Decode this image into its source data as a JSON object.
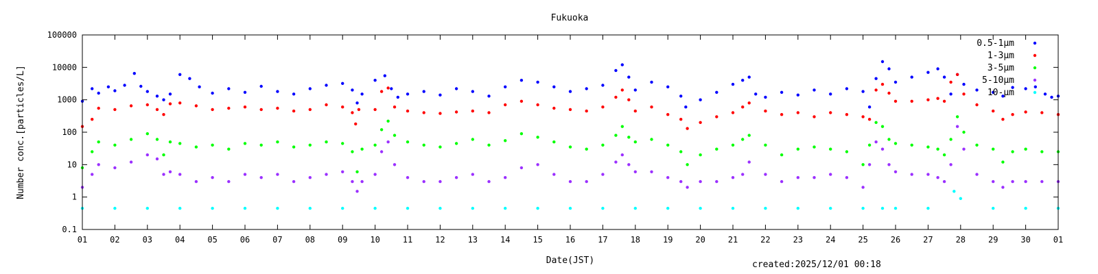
{
  "chart_data": {
    "type": "scatter",
    "title": "Fukuoka",
    "xlabel": "Date(JST)",
    "ylabel": "Number conc.[particles/L]",
    "yscale": "log",
    "ylim": [
      0.1,
      100000
    ],
    "yticks": [
      {
        "value": 0.1,
        "label": "0.1"
      },
      {
        "value": 1,
        "label": "1"
      },
      {
        "value": 10,
        "label": "10"
      },
      {
        "value": 100,
        "label": "100"
      },
      {
        "value": 1000,
        "label": "1000"
      },
      {
        "value": 10000,
        "label": "10000"
      },
      {
        "value": 100000,
        "label": "100000"
      }
    ],
    "xlim": [
      1,
      31
    ],
    "xticks": [
      "01",
      "02",
      "03",
      "04",
      "05",
      "06",
      "07",
      "08",
      "09",
      "10",
      "11",
      "12",
      "13",
      "14",
      "15",
      "16",
      "17",
      "18",
      "19",
      "20",
      "21",
      "22",
      "23",
      "24",
      "25",
      "26",
      "27",
      "28",
      "29",
      "30",
      "01"
    ],
    "grid": false,
    "legend_position": "top-right",
    "footer": "created:2025/12/01 00:18",
    "series": [
      {
        "name": "0.5-1μm",
        "color": "#0000ff",
        "x": [
          1.0,
          1.3,
          1.5,
          1.8,
          2.0,
          2.3,
          2.6,
          2.8,
          3.0,
          3.3,
          3.5,
          3.7,
          4.0,
          4.3,
          4.6,
          5.0,
          5.5,
          6.0,
          6.5,
          7.0,
          7.5,
          8.0,
          8.5,
          9.0,
          9.3,
          9.45,
          9.6,
          10.0,
          10.3,
          10.5,
          10.7,
          11.0,
          11.5,
          12.0,
          12.5,
          13.0,
          13.5,
          14.0,
          14.5,
          15.0,
          15.5,
          16.0,
          16.5,
          17.0,
          17.4,
          17.6,
          17.8,
          18.0,
          18.5,
          19.0,
          19.4,
          19.55,
          20.0,
          20.5,
          21.0,
          21.3,
          21.5,
          21.7,
          22.0,
          22.5,
          23.0,
          23.5,
          24.0,
          24.5,
          25.0,
          25.2,
          25.4,
          25.6,
          25.8,
          26.0,
          26.5,
          27.0,
          27.3,
          27.5,
          27.7,
          27.9,
          28.1,
          28.5,
          29.0,
          29.3,
          29.6,
          30.0,
          30.3,
          30.6,
          30.8,
          31.0
        ],
        "y": [
          900,
          2200,
          1600,
          2500,
          1900,
          2800,
          6500,
          2600,
          1800,
          1300,
          1000,
          1500,
          6000,
          4500,
          2500,
          1600,
          2200,
          1700,
          2600,
          1800,
          1500,
          2200,
          2800,
          3200,
          2000,
          800,
          1500,
          4000,
          5500,
          2200,
          1200,
          1500,
          1800,
          1400,
          2200,
          1800,
          1300,
          2500,
          4000,
          3500,
          2500,
          1800,
          2200,
          2800,
          8000,
          12000,
          5000,
          2000,
          3500,
          2500,
          1300,
          600,
          1000,
          1700,
          3000,
          4000,
          5000,
          1500,
          1200,
          1700,
          1400,
          2000,
          1500,
          2200,
          1800,
          600,
          4500,
          15000,
          9000,
          3500,
          5000,
          7000,
          9000,
          5000,
          1500,
          6000,
          3000,
          2000,
          1700,
          1300,
          2400,
          2200,
          2500,
          1500,
          1200,
          1300
        ]
      },
      {
        "name": "1-3μm",
        "color": "#ff0000",
        "x": [
          1.0,
          1.3,
          1.5,
          2.0,
          2.5,
          3.0,
          3.3,
          3.5,
          3.7,
          4.0,
          4.5,
          5.0,
          5.5,
          6.0,
          6.5,
          7.0,
          7.5,
          8.0,
          8.5,
          9.0,
          9.3,
          9.4,
          9.5,
          10.0,
          10.2,
          10.4,
          10.6,
          11.0,
          11.5,
          12.0,
          12.5,
          13.0,
          13.5,
          14.0,
          14.5,
          15.0,
          15.5,
          16.0,
          16.5,
          17.0,
          17.4,
          17.6,
          17.8,
          18.0,
          18.5,
          19.0,
          19.4,
          19.6,
          20.0,
          20.5,
          21.0,
          21.3,
          21.5,
          22.0,
          22.5,
          23.0,
          23.5,
          24.0,
          24.5,
          25.0,
          25.2,
          25.4,
          25.6,
          25.8,
          26.0,
          26.5,
          27.0,
          27.3,
          27.5,
          27.7,
          27.9,
          28.1,
          28.5,
          29.0,
          29.3,
          29.6,
          30.0,
          30.5,
          31.0
        ],
        "y": [
          150,
          250,
          550,
          500,
          650,
          700,
          500,
          350,
          750,
          800,
          650,
          500,
          550,
          600,
          500,
          550,
          450,
          500,
          700,
          600,
          400,
          180,
          500,
          500,
          1800,
          2300,
          600,
          450,
          400,
          380,
          420,
          450,
          400,
          700,
          900,
          700,
          550,
          500,
          450,
          600,
          1200,
          2000,
          1000,
          450,
          600,
          350,
          250,
          130,
          200,
          300,
          400,
          600,
          800,
          450,
          350,
          400,
          300,
          400,
          350,
          300,
          250,
          2000,
          3000,
          1600,
          900,
          900,
          1000,
          1100,
          900,
          3500,
          6000,
          1500,
          700,
          450,
          250,
          350,
          420,
          400,
          350
        ]
      },
      {
        "name": "3-5μm",
        "color": "#00ff00",
        "x": [
          1.0,
          1.3,
          1.5,
          2.0,
          2.5,
          3.0,
          3.3,
          3.5,
          3.7,
          4.0,
          4.5,
          5.0,
          5.5,
          6.0,
          6.5,
          7.0,
          7.5,
          8.0,
          8.5,
          9.0,
          9.3,
          9.45,
          9.6,
          10.0,
          10.2,
          10.4,
          10.6,
          11.0,
          11.5,
          12.0,
          12.5,
          13.0,
          13.5,
          14.0,
          14.5,
          15.0,
          15.5,
          16.0,
          16.5,
          17.0,
          17.4,
          17.6,
          17.8,
          18.0,
          18.5,
          19.0,
          19.4,
          19.6,
          20.0,
          20.5,
          21.0,
          21.3,
          21.5,
          22.0,
          22.5,
          23.0,
          23.5,
          24.0,
          24.5,
          25.0,
          25.2,
          25.4,
          25.6,
          25.8,
          26.0,
          26.5,
          27.0,
          27.3,
          27.5,
          27.7,
          27.9,
          28.1,
          28.5,
          29.0,
          29.3,
          29.6,
          30.0,
          30.5,
          31.0
        ],
        "y": [
          8,
          25,
          50,
          40,
          60,
          90,
          60,
          20,
          50,
          45,
          35,
          40,
          30,
          45,
          40,
          50,
          35,
          40,
          50,
          45,
          25,
          6,
          30,
          40,
          120,
          220,
          80,
          50,
          40,
          35,
          45,
          60,
          40,
          55,
          90,
          70,
          50,
          35,
          30,
          40,
          80,
          150,
          70,
          50,
          60,
          40,
          25,
          10,
          20,
          30,
          40,
          60,
          80,
          40,
          20,
          30,
          35,
          30,
          25,
          10,
          40,
          200,
          150,
          60,
          45,
          40,
          35,
          30,
          20,
          60,
          300,
          100,
          40,
          30,
          12,
          25,
          30,
          25,
          25
        ]
      },
      {
        "name": "5-10μm",
        "color": "#9b30ff",
        "x": [
          1.0,
          1.3,
          1.5,
          2.0,
          2.5,
          3.0,
          3.3,
          3.5,
          3.7,
          4.0,
          4.5,
          5.0,
          5.5,
          6.0,
          6.5,
          7.0,
          7.5,
          8.0,
          8.5,
          9.0,
          9.3,
          9.45,
          9.6,
          10.0,
          10.2,
          10.4,
          10.6,
          11.0,
          11.5,
          12.0,
          12.5,
          13.0,
          13.5,
          14.0,
          14.5,
          15.0,
          15.5,
          16.0,
          16.5,
          17.0,
          17.4,
          17.6,
          17.8,
          18.0,
          18.5,
          19.0,
          19.4,
          19.6,
          20.0,
          20.5,
          21.0,
          21.3,
          21.5,
          22.0,
          22.5,
          23.0,
          23.5,
          24.0,
          24.5,
          25.0,
          25.2,
          25.4,
          25.6,
          25.8,
          26.0,
          26.5,
          27.0,
          27.3,
          27.5,
          27.7,
          27.9,
          28.1,
          28.5,
          29.0,
          29.3,
          29.6,
          30.0,
          30.5,
          31.0
        ],
        "y": [
          2,
          5,
          10,
          8,
          12,
          20,
          15,
          5,
          6,
          5,
          3,
          4,
          3,
          5,
          4,
          5,
          3,
          4,
          5,
          6,
          3,
          1.5,
          3,
          5,
          25,
          50,
          10,
          4,
          3,
          3,
          4,
          5,
          3,
          4,
          8,
          10,
          5,
          3,
          3,
          5,
          12,
          20,
          10,
          6,
          6,
          4,
          3,
          2,
          3,
          3,
          4,
          5,
          12,
          5,
          3,
          4,
          4,
          5,
          4,
          2,
          10,
          50,
          30,
          10,
          6,
          5,
          5,
          4,
          3,
          10,
          150,
          30,
          5,
          3,
          2,
          3,
          3,
          3,
          3
        ]
      },
      {
        "name": "10-μm",
        "color": "#00ffff",
        "x": [
          1.0,
          2.0,
          3.0,
          4.0,
          5.0,
          6.0,
          7.0,
          8.0,
          9.0,
          10.0,
          11.0,
          12.0,
          13.0,
          14.0,
          15.0,
          16.0,
          17.0,
          18.0,
          19.0,
          20.0,
          21.0,
          22.0,
          23.0,
          24.0,
          25.0,
          25.6,
          26.0,
          27.0,
          27.8,
          28.0,
          29.0,
          30.0,
          31.0
        ],
        "y": [
          0.45,
          0.45,
          0.45,
          0.45,
          0.45,
          0.45,
          0.45,
          0.45,
          0.45,
          0.45,
          0.45,
          0.45,
          0.45,
          0.45,
          0.45,
          0.45,
          0.45,
          0.45,
          0.45,
          0.45,
          0.45,
          0.45,
          0.45,
          0.45,
          0.45,
          0.45,
          0.45,
          0.45,
          1.5,
          0.9,
          0.45,
          0.45,
          0.45
        ]
      }
    ]
  }
}
